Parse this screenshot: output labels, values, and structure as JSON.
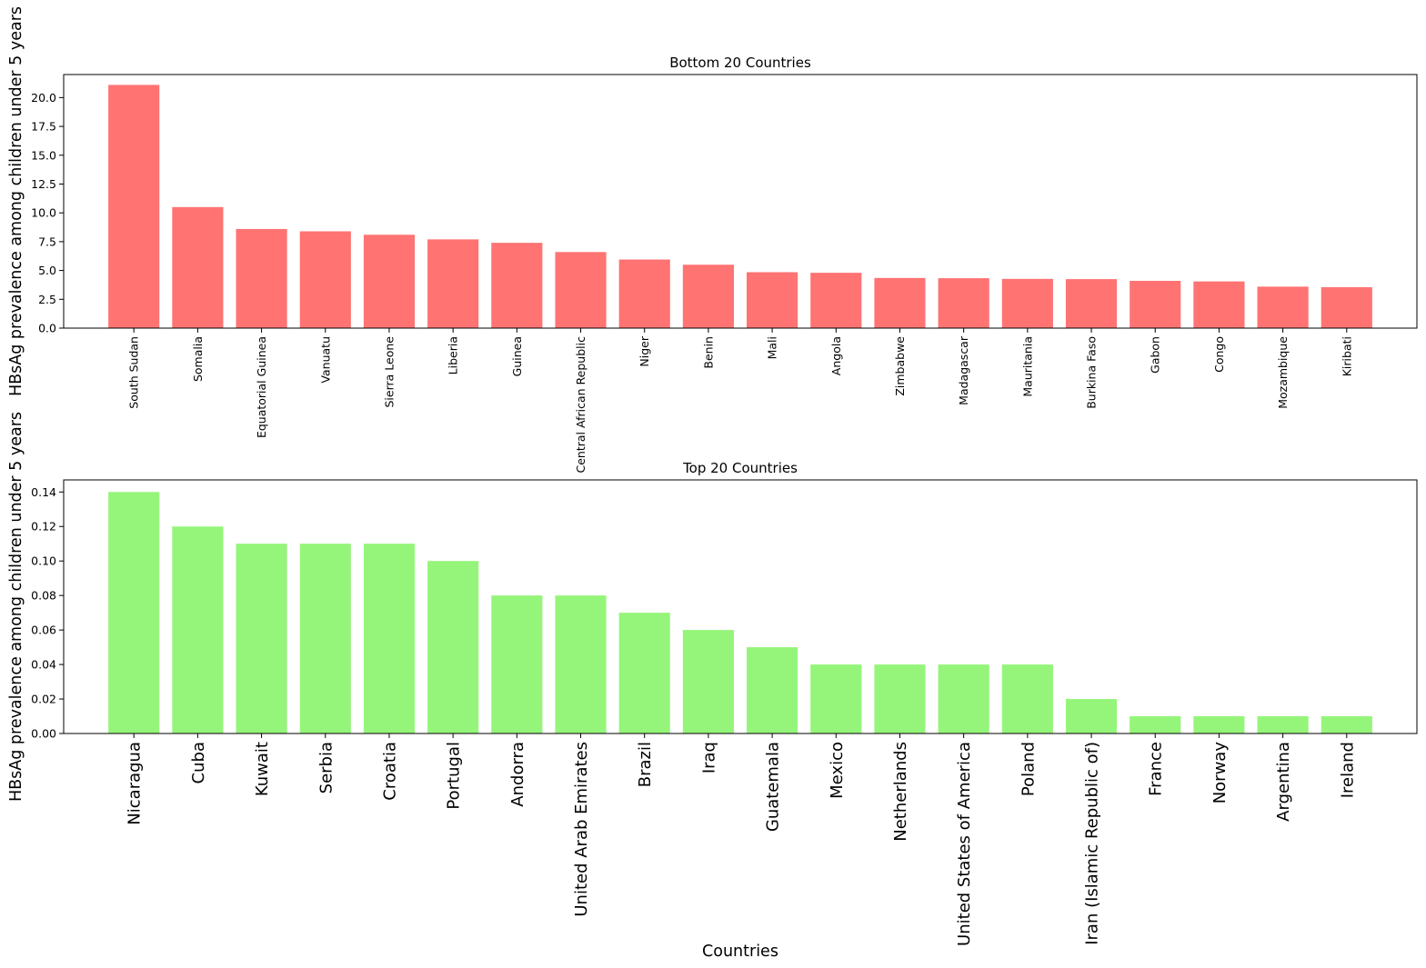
{
  "chart_data": [
    {
      "type": "bar",
      "title": "Bottom 20 Countries",
      "ylabel": "HBsAg prevalence among children under 5 years",
      "xlabel": "",
      "color": "#ff7373",
      "ylim": [
        0,
        22
      ],
      "yticks": [
        "0.0",
        "2.5",
        "5.0",
        "7.5",
        "10.0",
        "12.5",
        "15.0",
        "17.5",
        "20.0"
      ],
      "categories": [
        "South Sudan",
        "Somalia",
        "Equatorial Guinea",
        "Vanuatu",
        "Sierra Leone",
        "Liberia",
        "Guinea",
        "Central African Republic",
        "Niger",
        "Benin",
        "Mali",
        "Angola",
        "Zimbabwe",
        "Madagascar",
        "Mauritania",
        "Burkina Faso",
        "Gabon",
        "Congo",
        "Mozambique",
        "Kiribati"
      ],
      "values": [
        21.1,
        10.5,
        8.6,
        8.4,
        8.1,
        7.7,
        7.4,
        6.6,
        5.95,
        5.5,
        4.85,
        4.8,
        4.35,
        4.33,
        4.27,
        4.25,
        4.1,
        4.05,
        3.6,
        3.55
      ]
    },
    {
      "type": "bar",
      "title": "Top 20 Countries",
      "ylabel": "HBsAg prevalence among children under 5 years",
      "xlabel": "Countries",
      "color": "#95f57a",
      "ylim": [
        0,
        0.147
      ],
      "yticks": [
        "0.00",
        "0.02",
        "0.04",
        "0.06",
        "0.08",
        "0.10",
        "0.12",
        "0.14"
      ],
      "categories": [
        "Nicaragua",
        "Cuba",
        "Kuwait",
        "Serbia",
        "Croatia",
        "Portugal",
        "Andorra",
        "United Arab Emirates",
        "Brazil",
        "Iraq",
        "Guatemala",
        "Mexico",
        "Netherlands",
        "United States of America",
        "Poland",
        "Iran (Islamic Republic of)",
        "France",
        "Norway",
        "Argentina",
        "Ireland"
      ],
      "values": [
        0.14,
        0.12,
        0.11,
        0.11,
        0.11,
        0.1,
        0.08,
        0.08,
        0.07,
        0.06,
        0.05,
        0.04,
        0.04,
        0.04,
        0.04,
        0.02,
        0.01,
        0.01,
        0.01,
        0.01
      ]
    }
  ]
}
